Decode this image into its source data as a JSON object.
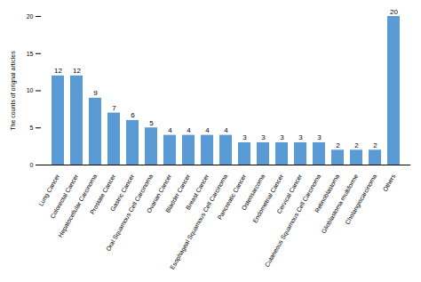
{
  "chart_data": {
    "type": "bar",
    "categories": [
      "Lung Cancer",
      "Colorectal Cancer",
      "Hepatocellular Carcinoma",
      "Prostate Cancer",
      "Gastric Cancer",
      "Oral Squamous Cell Carcinoma",
      "Ovarian Cancer",
      "Bladder Cancer",
      "Breast Cancer",
      "Esophageal Squamous Cell Carcinoma",
      "Pancreatic Cancer",
      "Osteosarcoma",
      "Endometrial Cancer",
      "Cervical Cancer",
      "Cutaneous Squamous Cell Carcinoma",
      "Retinoblastoma",
      "Glioblastoma multiforme",
      "Cholangiocarcinoma",
      "Others"
    ],
    "values": [
      12,
      12,
      9,
      7,
      6,
      5,
      4,
      4,
      4,
      4,
      3,
      3,
      3,
      3,
      3,
      2,
      2,
      2,
      20
    ],
    "color": "#5b9bd5",
    "ylabel": "The counts of orignal articles",
    "ylim": [
      0,
      20
    ],
    "yticks": [
      0,
      5,
      10,
      15,
      20
    ],
    "grid": false,
    "data_labels": true
  }
}
